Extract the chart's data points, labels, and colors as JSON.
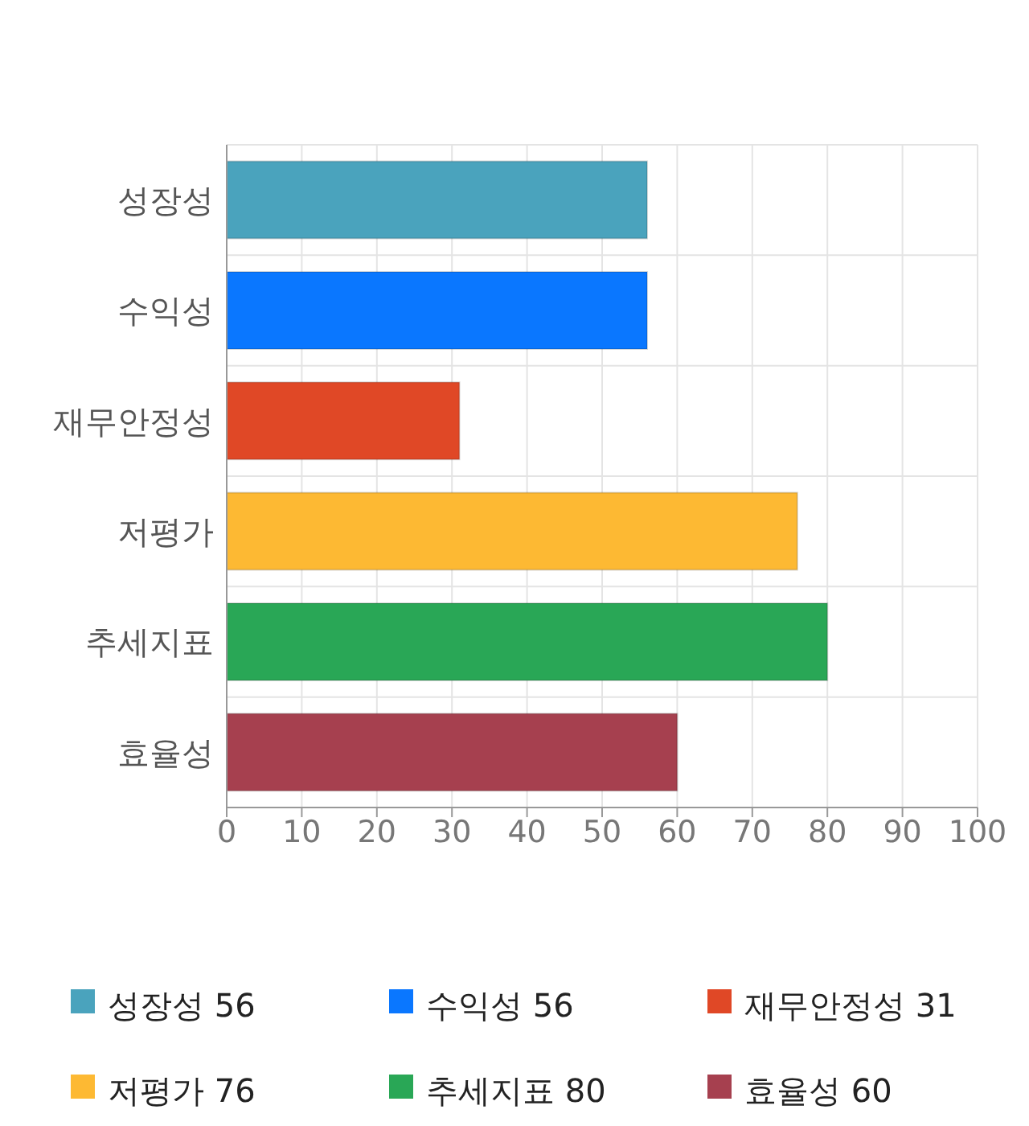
{
  "chart_data": {
    "type": "bar",
    "orientation": "horizontal",
    "stacked": true,
    "categories": [
      "성장성",
      "수익성",
      "재무안정성",
      "저평가",
      "추세지표",
      "효율성"
    ],
    "series": [
      {
        "name": "성장성 56",
        "color": "#4aa3bd",
        "values": [
          56,
          null,
          null,
          null,
          null,
          null
        ]
      },
      {
        "name": "수익성 56",
        "color": "#0a77ff",
        "values": [
          null,
          56,
          null,
          null,
          null,
          null
        ]
      },
      {
        "name": "재무안정성 31",
        "color": "#e04826",
        "values": [
          null,
          null,
          31,
          null,
          null,
          null
        ]
      },
      {
        "name": "저평가 76",
        "color": "#fdb933",
        "values": [
          null,
          null,
          null,
          76,
          null,
          null
        ]
      },
      {
        "name": "추세지표 80",
        "color": "#29a756",
        "values": [
          null,
          null,
          null,
          null,
          80,
          null
        ]
      },
      {
        "name": "효율성 60",
        "color": "#a6404f",
        "values": [
          null,
          null,
          null,
          null,
          null,
          60
        ]
      }
    ],
    "xlim": [
      0,
      100
    ],
    "xticks": [
      0,
      10,
      20,
      30,
      40,
      50,
      60,
      70,
      80,
      90,
      100
    ],
    "grid": true,
    "legend": "bottom"
  }
}
